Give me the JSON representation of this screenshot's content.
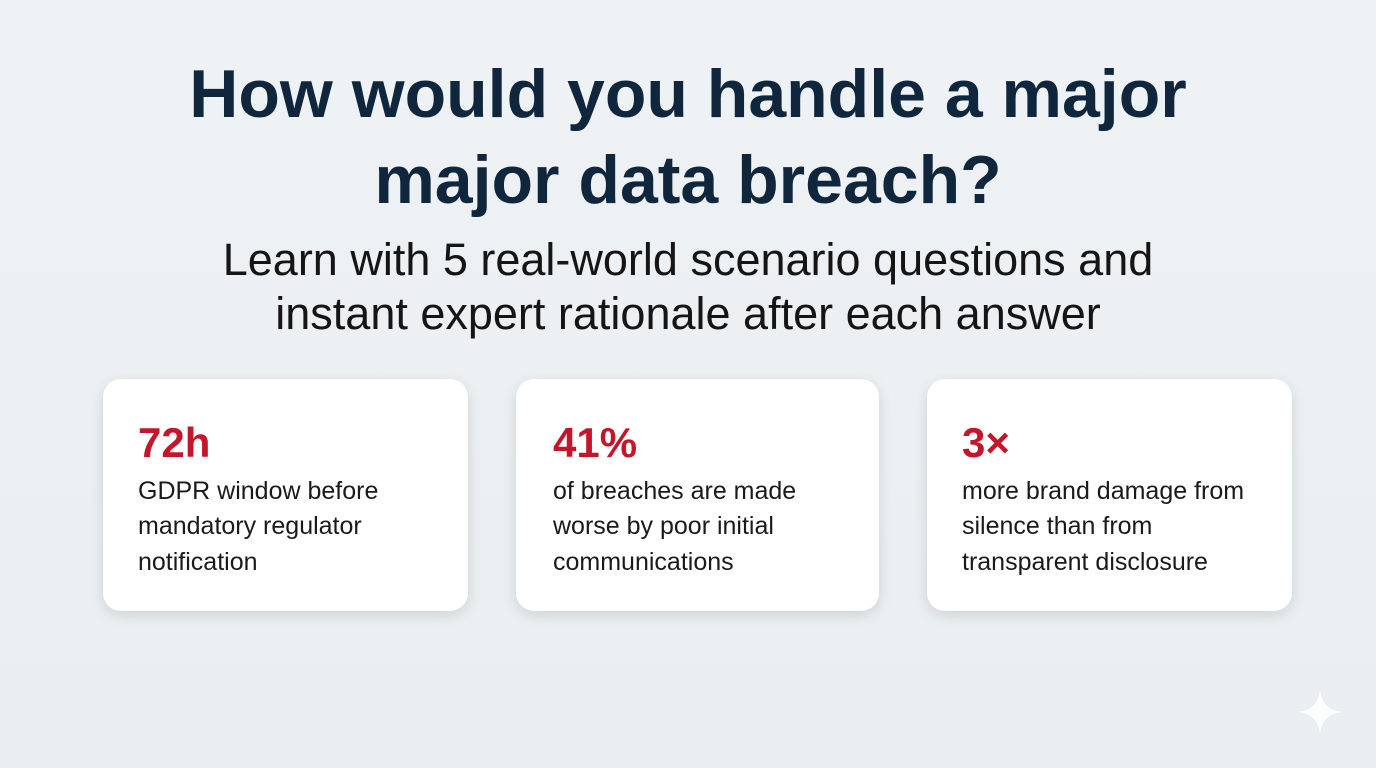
{
  "header": {
    "title_lines": [
      "How would you handle a major",
      "major data breach?"
    ],
    "subtitle_lines": [
      "Learn with 5 real-world scenario questions and",
      "instant expert rationale after each answer"
    ]
  },
  "cards": [
    {
      "stat": "72h",
      "lines": [
        "GDPR window before",
        "mandatory regulator",
        "notification"
      ]
    },
    {
      "stat": "41%",
      "lines": [
        "of breaches are made",
        "worse by poor initial",
        "communications"
      ]
    },
    {
      "stat": "3×",
      "lines": [
        "more brand damage from",
        "silence than from",
        "transparent disclosure"
      ]
    }
  ]
}
